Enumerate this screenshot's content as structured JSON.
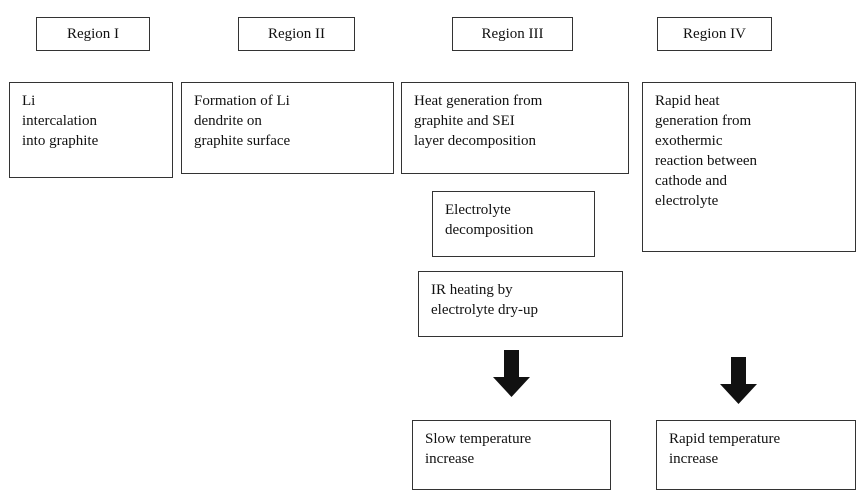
{
  "regions": [
    "Region I",
    "Region II",
    "Region III",
    "Region IV"
  ],
  "boxes": [
    {
      "lines": [
        "Li",
        "intercalation",
        "into graphite"
      ]
    },
    {
      "lines": [
        "Formation of Li",
        "dendrite on",
        "graphite surface"
      ]
    },
    {
      "lines": [
        "Heat generation from",
        "graphite and SEI",
        "layer decomposition"
      ]
    },
    {
      "lines": [
        "Rapid heat",
        "generation from",
        "exothermic",
        "reaction between",
        "cathode and",
        "electrolyte"
      ]
    },
    {
      "lines": [
        "Electrolyte",
        "decomposition"
      ]
    },
    {
      "lines": [
        "IR heating by",
        "electrolyte dry-up"
      ]
    },
    {
      "lines": [
        "Slow temperature",
        "increase"
      ]
    },
    {
      "lines": [
        "Rapid temperature",
        "increase"
      ]
    }
  ]
}
